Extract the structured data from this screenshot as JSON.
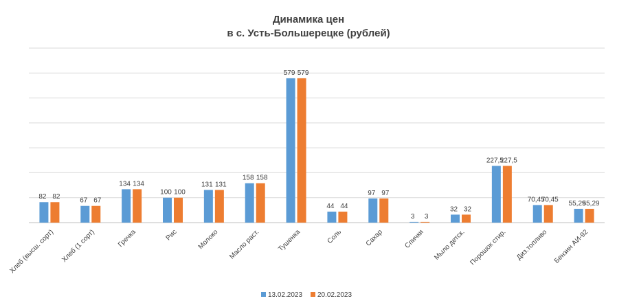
{
  "chart_data": {
    "type": "bar",
    "title": "Динамика цен",
    "subtitle": "в с. Усть-Большерецке (рублей)",
    "xlabel": "",
    "ylabel": "",
    "ylim": [
      0,
      700
    ],
    "grid": true,
    "legend_position": "bottom",
    "categories": [
      "Хлеб (высш. сорт)",
      "Хлеб (1 сорт)",
      "Гречка",
      "Рис",
      "Молоко",
      "Масло раст.",
      "Тушенка",
      "Соль",
      "Сахар",
      "Спички",
      "Мыло детск.",
      "Порошок стир.",
      "Диз.топливо",
      "Бензин АИ-92"
    ],
    "series": [
      {
        "name": "13.02.2023",
        "color": "#5B9BD5",
        "values": [
          82,
          67,
          134,
          100,
          131,
          158,
          579,
          44,
          97,
          3,
          32,
          227.5,
          70.45,
          55.29
        ],
        "labels": [
          "82",
          "67",
          "134",
          "100",
          "131",
          "158",
          "579",
          "44",
          "97",
          "3",
          "32",
          "227,5",
          "70,45",
          "55,29"
        ]
      },
      {
        "name": "20.02.2023",
        "color": "#ED7D31",
        "values": [
          82,
          67,
          134,
          100,
          131,
          158,
          579,
          44,
          97,
          3,
          32,
          227.5,
          70.45,
          55.29
        ],
        "labels": [
          "82",
          "67",
          "134",
          "100",
          "131",
          "158",
          "579",
          "44",
          "97",
          "3",
          "32",
          "227,5",
          "70,45",
          "55,29"
        ]
      }
    ]
  }
}
